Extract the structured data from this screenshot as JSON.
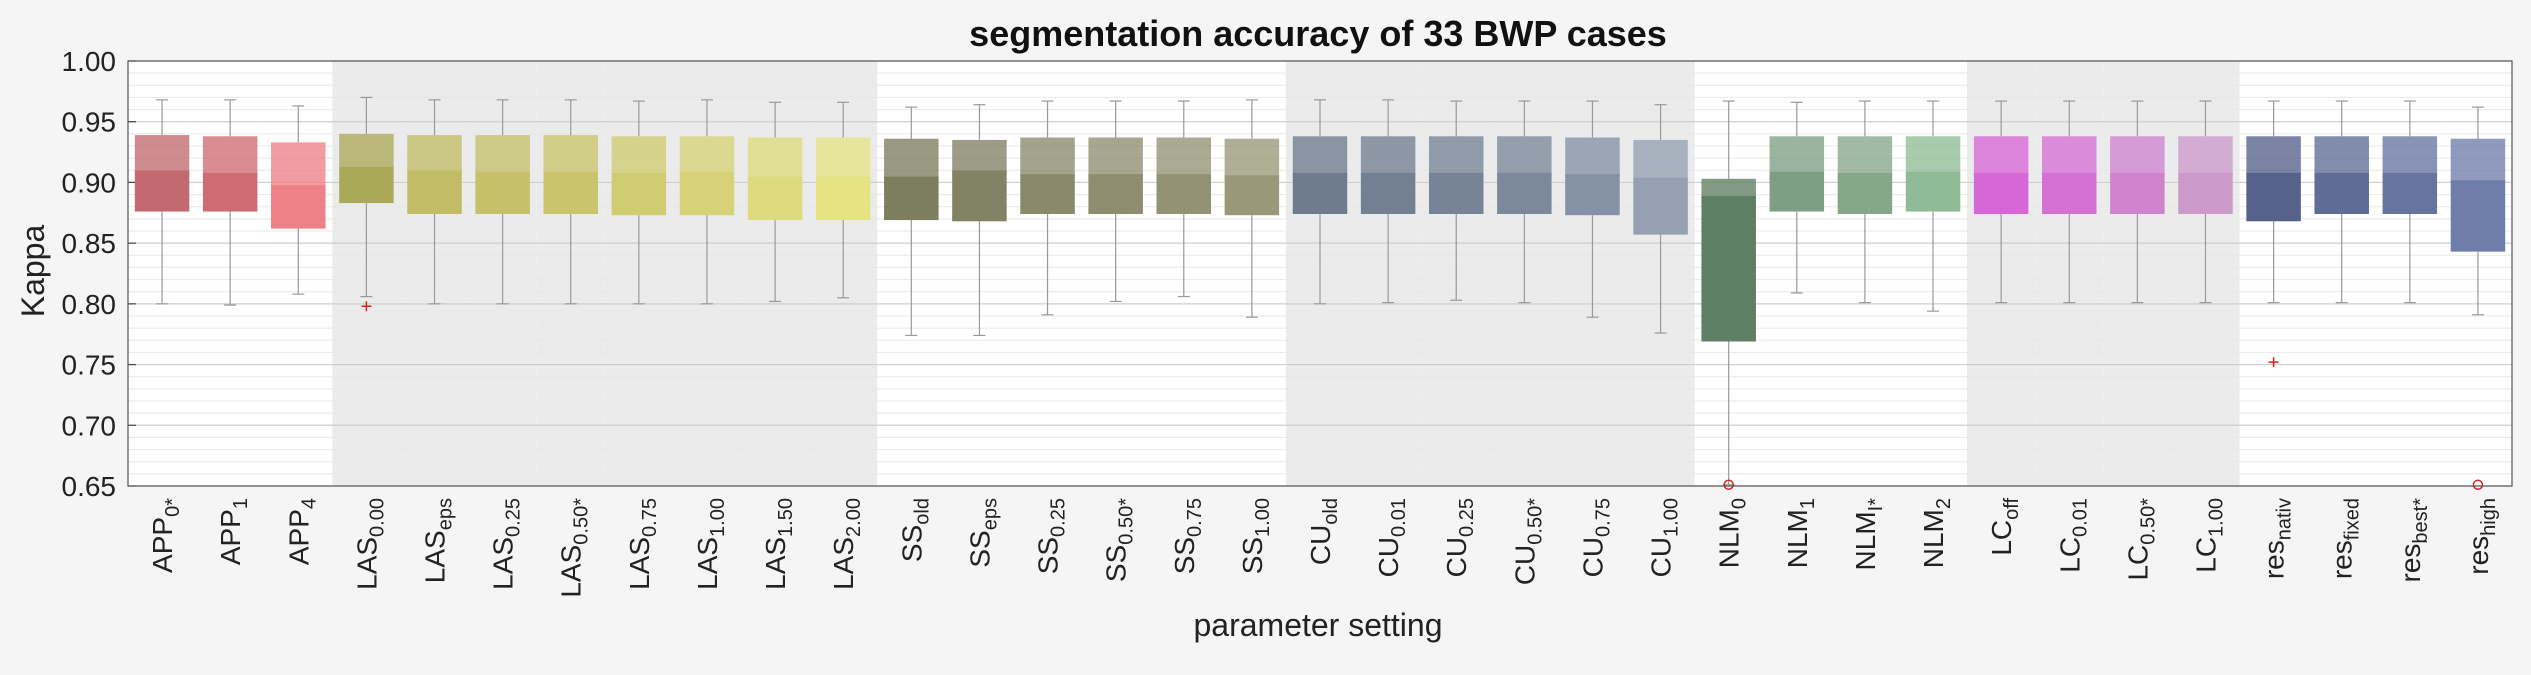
{
  "chart_data": {
    "type": "box",
    "title": "segmentation accuracy of 33 BWP cases",
    "xlabel": "parameter setting",
    "ylabel": "Kappa",
    "ylim": [
      0.65,
      1.0
    ],
    "yticks": [
      "1.00",
      "0.95",
      "0.90",
      "0.85",
      "0.80",
      "0.75",
      "0.70",
      "0.65"
    ],
    "legend": "none",
    "shaded_groups": [
      3,
      4,
      5,
      6,
      7,
      8,
      9,
      10,
      17,
      18,
      19,
      20,
      21,
      22,
      27,
      28,
      29,
      30
    ],
    "categories": [
      {
        "base": "APP",
        "sub": "0*",
        "color": "#c26a70",
        "whisker_low": 0.8,
        "q1": 0.876,
        "median": 0.909,
        "q3": 0.939,
        "whisker_high": 0.968,
        "outliers": []
      },
      {
        "base": "APP",
        "sub": "1",
        "color": "#cf6c73",
        "whisker_low": 0.799,
        "q1": 0.876,
        "median": 0.907,
        "q3": 0.938,
        "whisker_high": 0.968,
        "outliers": []
      },
      {
        "base": "APP",
        "sub": "4",
        "color": "#ee8088",
        "whisker_low": 0.808,
        "q1": 0.862,
        "median": 0.897,
        "q3": 0.933,
        "whisker_high": 0.963,
        "outliers": []
      },
      {
        "base": "LAS",
        "sub": "0.00",
        "color": "#aaa95a",
        "whisker_low": 0.806,
        "q1": 0.883,
        "median": 0.912,
        "q3": 0.94,
        "whisker_high": 0.97,
        "outliers": [
          {
            "y": 0.798,
            "marker": "plus"
          }
        ]
      },
      {
        "base": "LAS",
        "sub": "eps",
        "color": "#c0bd66",
        "whisker_low": 0.8,
        "q1": 0.874,
        "median": 0.909,
        "q3": 0.939,
        "whisker_high": 0.968,
        "outliers": []
      },
      {
        "base": "LAS",
        "sub": "0.25",
        "color": "#c4c16a",
        "whisker_low": 0.8,
        "q1": 0.874,
        "median": 0.908,
        "q3": 0.939,
        "whisker_high": 0.968,
        "outliers": []
      },
      {
        "base": "LAS",
        "sub": "0.50*",
        "color": "#c8c56c",
        "whisker_low": 0.8,
        "q1": 0.874,
        "median": 0.908,
        "q3": 0.939,
        "whisker_high": 0.968,
        "outliers": []
      },
      {
        "base": "LAS",
        "sub": "0.75",
        "color": "#cfcc72",
        "whisker_low": 0.8,
        "q1": 0.873,
        "median": 0.907,
        "q3": 0.938,
        "whisker_high": 0.967,
        "outliers": []
      },
      {
        "base": "LAS",
        "sub": "1.00",
        "color": "#d5d277",
        "whisker_low": 0.8,
        "q1": 0.873,
        "median": 0.908,
        "q3": 0.938,
        "whisker_high": 0.968,
        "outliers": []
      },
      {
        "base": "LAS",
        "sub": "1.50",
        "color": "#dedb7e",
        "whisker_low": 0.802,
        "q1": 0.869,
        "median": 0.904,
        "q3": 0.937,
        "whisker_high": 0.966,
        "outliers": []
      },
      {
        "base": "LAS",
        "sub": "2.00",
        "color": "#e6e385",
        "whisker_low": 0.805,
        "q1": 0.869,
        "median": 0.904,
        "q3": 0.937,
        "whisker_high": 0.966,
        "outliers": []
      },
      {
        "base": "SS",
        "sub": "old",
        "color": "#7d7d60",
        "whisker_low": 0.774,
        "q1": 0.869,
        "median": 0.904,
        "q3": 0.936,
        "whisker_high": 0.962,
        "outliers": []
      },
      {
        "base": "SS",
        "sub": "eps",
        "color": "#828265",
        "whisker_low": 0.774,
        "q1": 0.868,
        "median": 0.909,
        "q3": 0.935,
        "whisker_high": 0.964,
        "outliers": []
      },
      {
        "base": "SS",
        "sub": "0.25",
        "color": "#8a896b",
        "whisker_low": 0.791,
        "q1": 0.874,
        "median": 0.906,
        "q3": 0.937,
        "whisker_high": 0.967,
        "outliers": []
      },
      {
        "base": "SS",
        "sub": "0.50*",
        "color": "#8e8d6f",
        "whisker_low": 0.802,
        "q1": 0.874,
        "median": 0.906,
        "q3": 0.937,
        "whisker_high": 0.967,
        "outliers": []
      },
      {
        "base": "SS",
        "sub": "0.75",
        "color": "#939274",
        "whisker_low": 0.806,
        "q1": 0.874,
        "median": 0.906,
        "q3": 0.937,
        "whisker_high": 0.967,
        "outliers": []
      },
      {
        "base": "SS",
        "sub": "1.00",
        "color": "#999879",
        "whisker_low": 0.789,
        "q1": 0.873,
        "median": 0.905,
        "q3": 0.936,
        "whisker_high": 0.968,
        "outliers": []
      },
      {
        "base": "CU",
        "sub": "old",
        "color": "#6f7b8e",
        "whisker_low": 0.8,
        "q1": 0.874,
        "median": 0.907,
        "q3": 0.938,
        "whisker_high": 0.968,
        "outliers": []
      },
      {
        "base": "CU",
        "sub": "0.01",
        "color": "#737f92",
        "whisker_low": 0.801,
        "q1": 0.874,
        "median": 0.907,
        "q3": 0.938,
        "whisker_high": 0.968,
        "outliers": []
      },
      {
        "base": "CU",
        "sub": "0.25",
        "color": "#778396",
        "whisker_low": 0.803,
        "q1": 0.874,
        "median": 0.907,
        "q3": 0.938,
        "whisker_high": 0.967,
        "outliers": []
      },
      {
        "base": "CU",
        "sub": "0.50*",
        "color": "#7c889b",
        "whisker_low": 0.801,
        "q1": 0.874,
        "median": 0.907,
        "q3": 0.938,
        "whisker_high": 0.967,
        "outliers": []
      },
      {
        "base": "CU",
        "sub": "0.75",
        "color": "#8591a4",
        "whisker_low": 0.789,
        "q1": 0.873,
        "median": 0.906,
        "q3": 0.937,
        "whisker_high": 0.967,
        "outliers": []
      },
      {
        "base": "CU",
        "sub": "1.00",
        "color": "#95a0b2",
        "whisker_low": 0.776,
        "q1": 0.857,
        "median": 0.903,
        "q3": 0.935,
        "whisker_high": 0.964,
        "outliers": []
      },
      {
        "base": "NLM",
        "sub": "0",
        "color": "#5e7f63",
        "whisker_low": 0.651,
        "q1": 0.769,
        "median": 0.888,
        "q3": 0.903,
        "whisker_high": 0.967,
        "outliers": [
          {
            "y": 0.651,
            "marker": "circle"
          }
        ]
      },
      {
        "base": "NLM",
        "sub": "1",
        "color": "#7f9f84",
        "whisker_low": 0.809,
        "q1": 0.876,
        "median": 0.908,
        "q3": 0.938,
        "whisker_high": 0.966,
        "outliers": []
      },
      {
        "base": "NLM",
        "sub": "I*",
        "color": "#86a68a",
        "whisker_low": 0.801,
        "q1": 0.874,
        "median": 0.907,
        "q3": 0.938,
        "whisker_high": 0.967,
        "outliers": []
      },
      {
        "base": "NLM",
        "sub": "2",
        "color": "#8fbb96",
        "whisker_low": 0.794,
        "q1": 0.876,
        "median": 0.908,
        "q3": 0.938,
        "whisker_high": 0.967,
        "outliers": []
      },
      {
        "base": "LC",
        "sub": "off",
        "color": "#d766d7",
        "whisker_low": 0.801,
        "q1": 0.874,
        "median": 0.907,
        "q3": 0.938,
        "whisker_high": 0.967,
        "outliers": []
      },
      {
        "base": "LC",
        "sub": "0.01",
        "color": "#d571d5",
        "whisker_low": 0.801,
        "q1": 0.874,
        "median": 0.907,
        "q3": 0.938,
        "whisker_high": 0.967,
        "outliers": []
      },
      {
        "base": "LC",
        "sub": "0.50*",
        "color": "#cf83cf",
        "whisker_low": 0.801,
        "q1": 0.874,
        "median": 0.907,
        "q3": 0.938,
        "whisker_high": 0.967,
        "outliers": []
      },
      {
        "base": "LC",
        "sub": "1.00",
        "color": "#cb9acb",
        "whisker_low": 0.801,
        "q1": 0.874,
        "median": 0.907,
        "q3": 0.938,
        "whisker_high": 0.967,
        "outliers": []
      },
      {
        "base": "res",
        "sub": "nativ",
        "color": "#56628b",
        "whisker_low": 0.801,
        "q1": 0.868,
        "median": 0.907,
        "q3": 0.938,
        "whisker_high": 0.967,
        "outliers": [
          {
            "y": 0.752,
            "marker": "plus"
          }
        ]
      },
      {
        "base": "res",
        "sub": "fixed",
        "color": "#5f6c96",
        "whisker_low": 0.801,
        "q1": 0.874,
        "median": 0.907,
        "q3": 0.938,
        "whisker_high": 0.967,
        "outliers": []
      },
      {
        "base": "res",
        "sub": "best*",
        "color": "#6774a0",
        "whisker_low": 0.801,
        "q1": 0.874,
        "median": 0.907,
        "q3": 0.938,
        "whisker_high": 0.967,
        "outliers": []
      },
      {
        "base": "res",
        "sub": "high",
        "color": "#6f7dab",
        "whisker_low": 0.791,
        "q1": 0.843,
        "median": 0.901,
        "q3": 0.936,
        "whisker_high": 0.962,
        "outliers": [
          {
            "y": 0.651,
            "marker": "circle"
          }
        ]
      }
    ]
  }
}
